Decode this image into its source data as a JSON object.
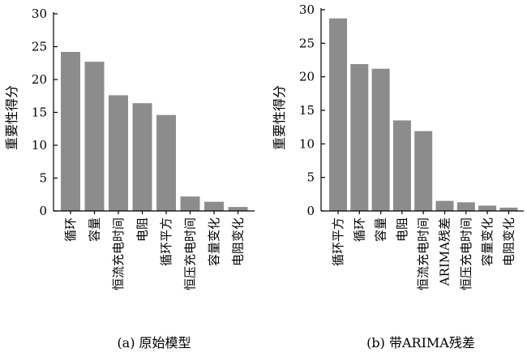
{
  "chart_data": [
    {
      "type": "bar",
      "caption": "(a)  原始模型",
      "ylabel": "重要性得分",
      "ylim": [
        0,
        30
      ],
      "yticks": [
        0,
        5,
        10,
        15,
        20,
        25,
        30
      ],
      "categories": [
        "循环",
        "容量",
        "恒流充电时间",
        "电阻",
        "循环平方",
        "恒压充电时间",
        "容量变化",
        "电阻变化"
      ],
      "values": [
        24.2,
        22.7,
        17.6,
        16.4,
        14.6,
        2.2,
        1.4,
        0.6
      ],
      "bar_color": "#8c8c8c"
    },
    {
      "type": "bar",
      "caption": "(b)  带ARIMA残差",
      "ylabel": "重要性得分",
      "ylim": [
        0,
        30
      ],
      "yticks": [
        0,
        5,
        10,
        15,
        20,
        25,
        30
      ],
      "categories": [
        "循环平方",
        "循环",
        "容量",
        "电阻",
        "恒流充电时间",
        "ARIMA残差",
        "恒压充电时间",
        "容量变化",
        "电阻变化"
      ],
      "values": [
        28.7,
        21.9,
        21.2,
        13.5,
        11.9,
        1.5,
        1.3,
        0.8,
        0.5
      ],
      "bar_color": "#8c8c8c"
    }
  ]
}
